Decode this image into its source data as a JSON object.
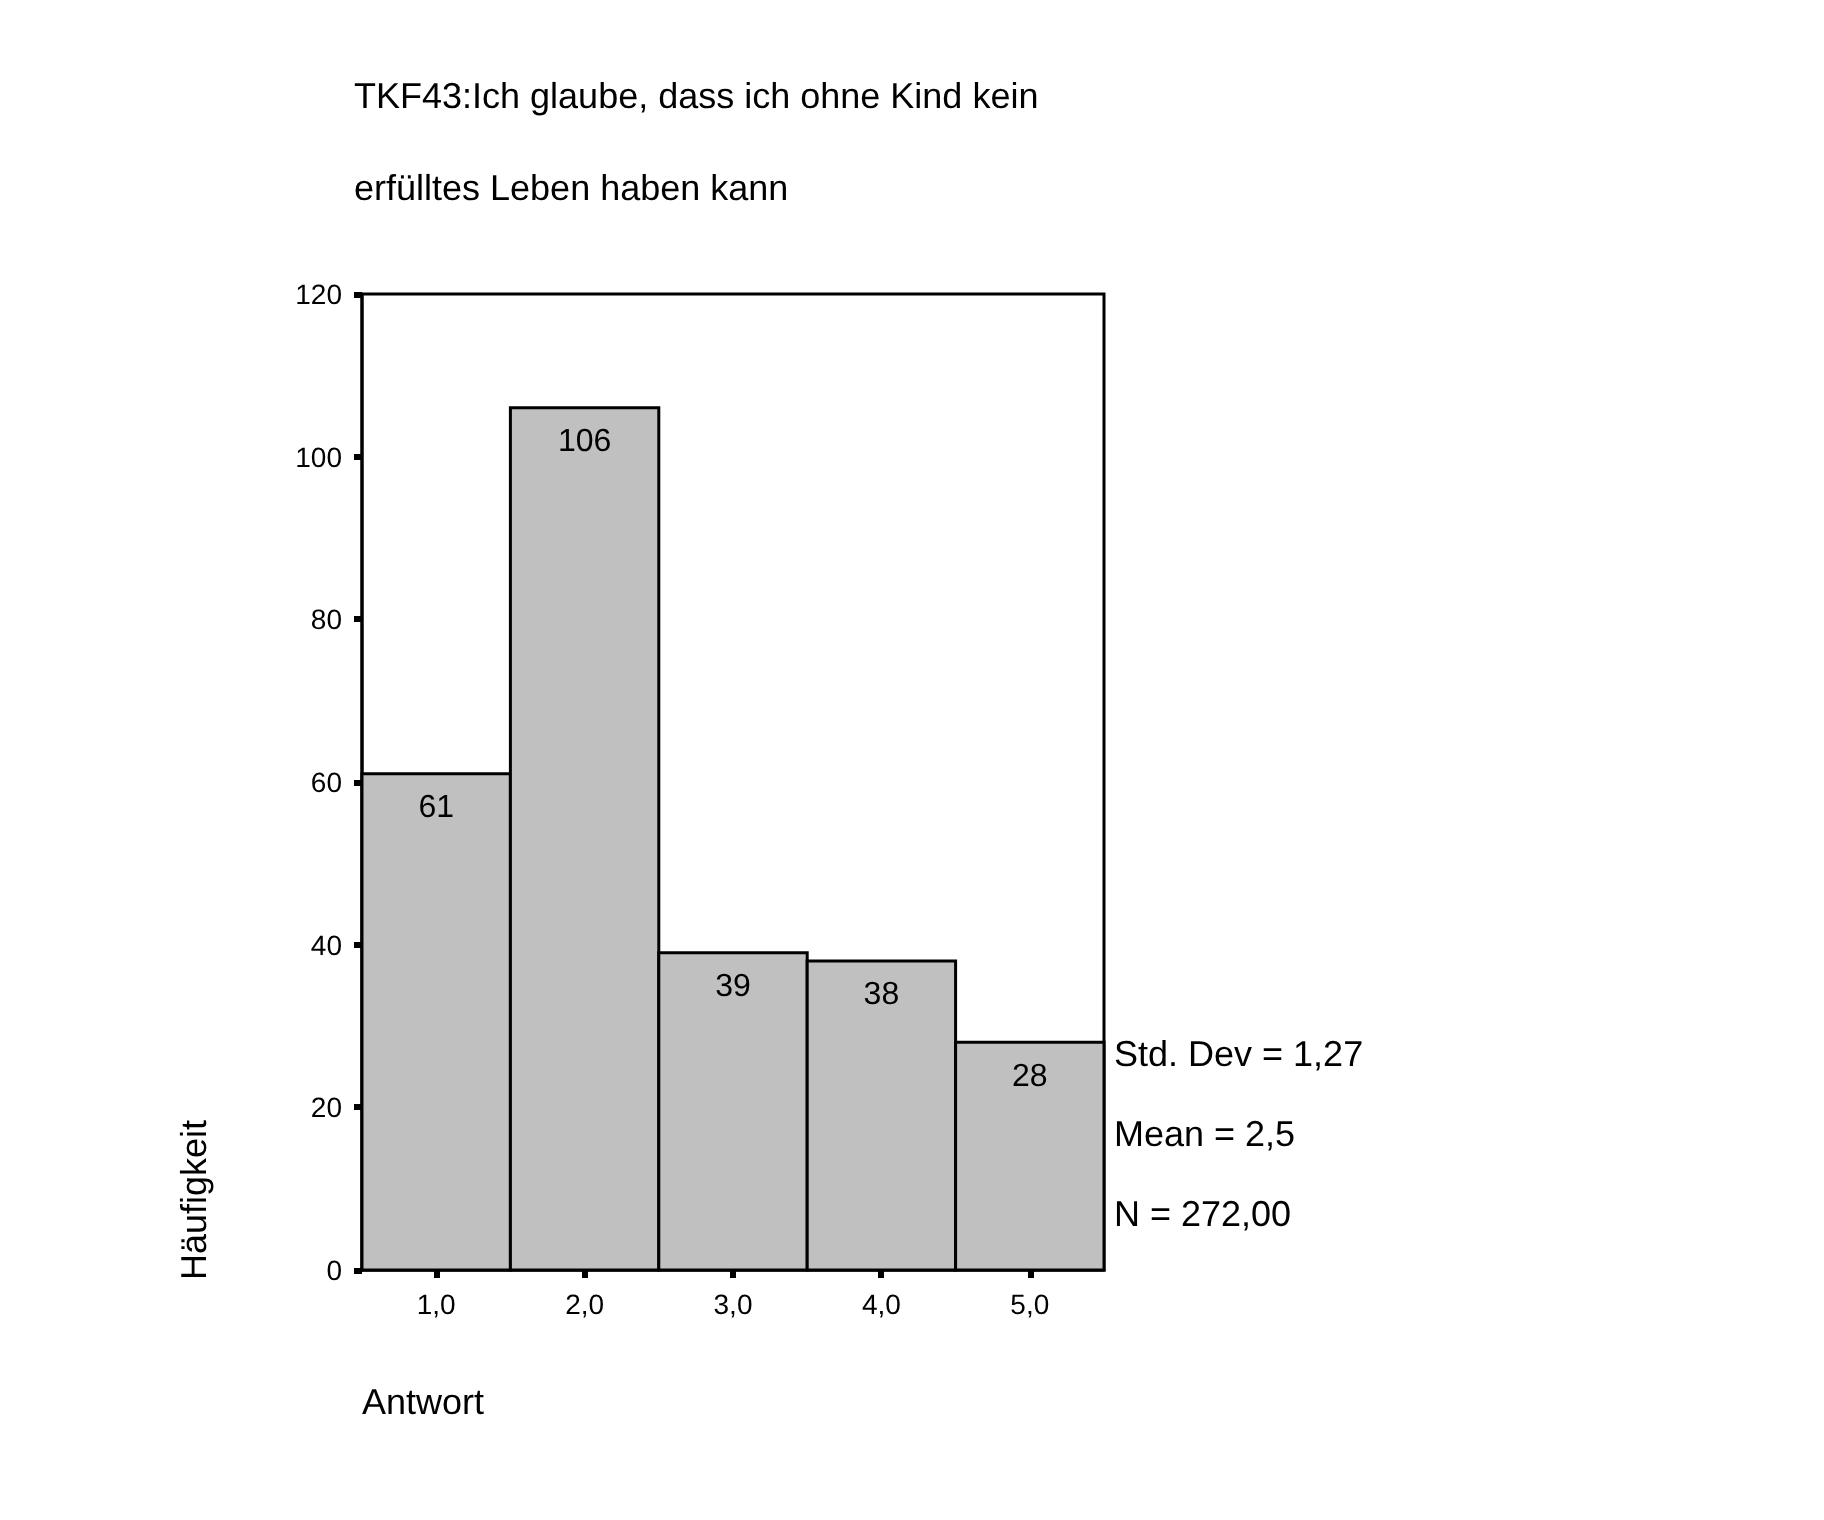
{
  "chart_data": {
    "type": "histogram",
    "title": "TKF43:Ich glaube, dass ich ohne Kind kein erfülltes Leben haben kann",
    "xlabel": "Antwort",
    "ylabel": "Häufigkeit",
    "bins": [
      0.5,
      1.5,
      2.5,
      3.5,
      4.5,
      5.5
    ],
    "values": [
      61,
      106,
      39,
      38,
      28
    ],
    "color": "#c0c0c0",
    "data_labels": true,
    "xlim": [
      0.5,
      5.5
    ],
    "xticks": [
      {
        "value": 1,
        "label": "1,0"
      },
      {
        "value": 2,
        "label": "2,0"
      },
      {
        "value": 3,
        "label": "3,0"
      },
      {
        "value": 4,
        "label": "4,0"
      },
      {
        "value": 5,
        "label": "5,0"
      }
    ],
    "ylim": [
      0,
      120
    ],
    "yticks": [
      0,
      20,
      40,
      60,
      80,
      100,
      120
    ],
    "grid": false,
    "annotations": [
      "Std. Dev = 1,27",
      "Mean = 2,5",
      "N = 272,00"
    ]
  }
}
